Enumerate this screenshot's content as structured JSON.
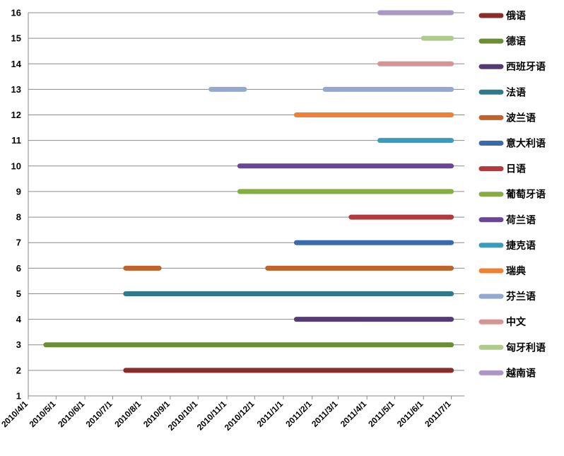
{
  "chart_data": {
    "type": "bar",
    "subtype": "horizontal-range (gantt)",
    "title": "",
    "xlabel": "",
    "ylabel": "",
    "x_axis": {
      "type": "date",
      "range": [
        "2010-04-01",
        "2011-07-15"
      ],
      "ticks": [
        "2010/4/1",
        "2010/5/1",
        "2010/6/1",
        "2010/7/1",
        "2010/8/1",
        "2010/9/1",
        "2010/10/1",
        "2010/11/1",
        "2010/12/1",
        "2011/1/1",
        "2011/2/1",
        "2011/3/1",
        "2011/4/1",
        "2011/5/1",
        "2011/6/1",
        "2011/7/1"
      ],
      "tick_dates": [
        "2010-04-01",
        "2010-05-01",
        "2010-06-01",
        "2010-07-01",
        "2010-08-01",
        "2010-09-01",
        "2010-10-01",
        "2010-11-01",
        "2010-12-01",
        "2011-01-01",
        "2011-02-01",
        "2011-03-01",
        "2011-04-01",
        "2011-05-01",
        "2011-06-01",
        "2011-07-01"
      ]
    },
    "y_axis": {
      "range": [
        1,
        16
      ],
      "ticks": [
        1,
        2,
        3,
        4,
        5,
        6,
        7,
        8,
        9,
        10,
        11,
        12,
        13,
        14,
        15,
        16
      ]
    },
    "grid": "horizontal",
    "legend_position": "right",
    "series": [
      {
        "name": "俄语",
        "color": "#8B2C2C",
        "y": 2,
        "ranges": [
          [
            "2010-07-15",
            "2011-07-01"
          ]
        ]
      },
      {
        "name": "德语",
        "color": "#6B8E34",
        "y": 3,
        "ranges": [
          [
            "2010-04-20",
            "2011-07-01"
          ]
        ]
      },
      {
        "name": "西班牙语",
        "color": "#553B73",
        "y": 4,
        "ranges": [
          [
            "2011-01-15",
            "2011-07-01"
          ]
        ]
      },
      {
        "name": "法语",
        "color": "#2E7A8C",
        "y": 5,
        "ranges": [
          [
            "2010-07-15",
            "2011-07-01"
          ]
        ]
      },
      {
        "name": "波兰语",
        "color": "#C0632A",
        "y": 6,
        "ranges": [
          [
            "2010-07-15",
            "2010-08-20"
          ],
          [
            "2010-12-15",
            "2011-07-01"
          ]
        ]
      },
      {
        "name": "意大利语",
        "color": "#3A6AAE",
        "y": 7,
        "ranges": [
          [
            "2011-01-15",
            "2011-07-01"
          ]
        ]
      },
      {
        "name": "日语",
        "color": "#B23A3A",
        "y": 8,
        "ranges": [
          [
            "2011-03-15",
            "2011-07-01"
          ]
        ]
      },
      {
        "name": "葡萄牙语",
        "color": "#86AE3F",
        "y": 9,
        "ranges": [
          [
            "2010-11-15",
            "2011-07-01"
          ]
        ]
      },
      {
        "name": "荷兰语",
        "color": "#6A4694",
        "y": 10,
        "ranges": [
          [
            "2010-11-15",
            "2011-07-01"
          ]
        ]
      },
      {
        "name": "捷克语",
        "color": "#3A9CBD",
        "y": 11,
        "ranges": [
          [
            "2011-04-15",
            "2011-07-01"
          ]
        ]
      },
      {
        "name": "瑞典",
        "color": "#EE8134",
        "y": 12,
        "ranges": [
          [
            "2011-01-15",
            "2011-07-01"
          ]
        ]
      },
      {
        "name": "芬兰语",
        "color": "#93A9CF",
        "y": 13,
        "ranges": [
          [
            "2010-10-15",
            "2010-11-20"
          ],
          [
            "2011-02-15",
            "2011-07-01"
          ]
        ]
      },
      {
        "name": "中文",
        "color": "#D69595",
        "y": 14,
        "ranges": [
          [
            "2011-04-15",
            "2011-07-01"
          ]
        ]
      },
      {
        "name": "匈牙利语",
        "color": "#AFCB8B",
        "y": 15,
        "ranges": [
          [
            "2011-06-01",
            "2011-07-01"
          ]
        ]
      },
      {
        "name": "越南语",
        "color": "#A999C4",
        "y": 16,
        "ranges": [
          [
            "2011-04-15",
            "2011-07-01"
          ]
        ]
      }
    ]
  }
}
